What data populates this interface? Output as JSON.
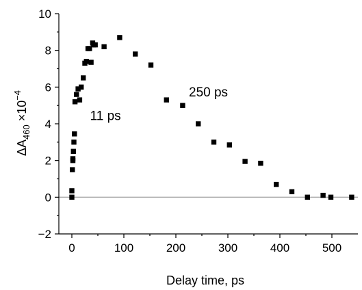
{
  "chart_data": {
    "type": "scatter",
    "xlabel": "Delay time, ps",
    "ylabel_base": "ΔA",
    "ylabel_sub": "460",
    "ylabel_mult": " ×10",
    "ylabel_exp": "−4",
    "xlim": [
      -25,
      550
    ],
    "ylim": [
      -2,
      10
    ],
    "xticks": [
      0,
      100,
      200,
      300,
      400,
      500
    ],
    "xtick_labels": [
      "0",
      "100",
      "200",
      "300",
      "400",
      "500"
    ],
    "yticks": [
      -2,
      0,
      2,
      4,
      6,
      8,
      10
    ],
    "ytick_labels": [
      "−2",
      "0",
      "2",
      "4",
      "6",
      "8",
      "10"
    ],
    "zero_line": true,
    "grid": false,
    "annotations": [
      {
        "text": "11 ps",
        "x": 35,
        "y": 4.2
      },
      {
        "text": "250 ps",
        "x": 225,
        "y": 5.5
      }
    ],
    "series": [
      {
        "x": [
          0,
          0,
          1,
          2,
          2,
          3,
          4,
          5,
          6,
          9,
          12,
          15,
          18,
          22,
          25,
          28,
          31,
          34,
          37,
          40,
          42,
          45,
          62,
          92,
          122,
          152,
          182,
          213,
          243,
          273,
          303,
          333,
          363,
          393,
          423,
          453,
          483,
          498,
          538
        ],
        "y": [
          0,
          0.35,
          1.5,
          2.0,
          2.1,
          2.5,
          3.0,
          3.45,
          5.2,
          5.6,
          5.9,
          5.3,
          6.0,
          6.5,
          7.3,
          7.4,
          8.1,
          8.1,
          7.35,
          8.4,
          8.3,
          8.3,
          8.2,
          8.7,
          7.8,
          7.2,
          5.3,
          5.0,
          4.0,
          3.0,
          2.85,
          1.95,
          1.85,
          0.7,
          0.3,
          0.0,
          0.1,
          0.0,
          0.0
        ]
      }
    ]
  }
}
